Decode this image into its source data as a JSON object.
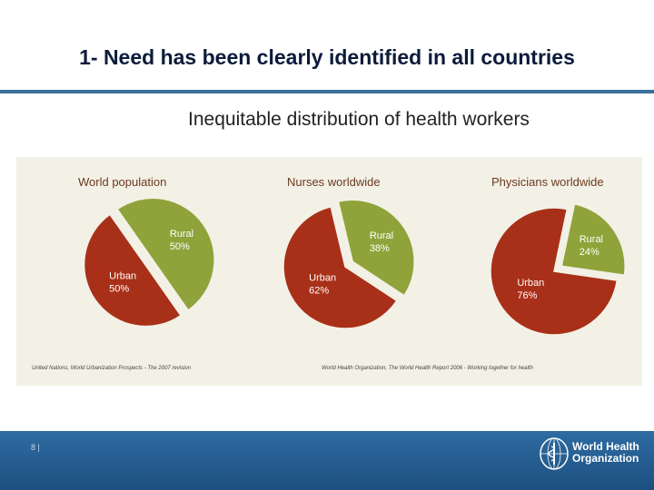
{
  "slide": {
    "title": "1- Need has been clearly identified in all countries",
    "subtitle": "Inequitable distribution of health workers",
    "page_number": "8 |",
    "logo_line1": "World Health",
    "logo_line2": "Organization"
  },
  "sources": {
    "left": "United Nations, World Urbanization Prospects - The 2007 revision",
    "right": "World Health Organization, The World Health Report 2006 - Working together for health"
  },
  "colors": {
    "rural": "#8fa33a",
    "urban": "#a93018",
    "title": "#0b1b3a",
    "footer": "#2a6599"
  },
  "chart_data": [
    {
      "type": "pie",
      "title": "World population",
      "slices": [
        {
          "label": "Rural",
          "value": 50,
          "display": "50%"
        },
        {
          "label": "Urban",
          "value": 50,
          "display": "50%"
        }
      ]
    },
    {
      "type": "pie",
      "title": "Nurses  worldwide",
      "slices": [
        {
          "label": "Rural",
          "value": 38,
          "display": "38%"
        },
        {
          "label": "Urban",
          "value": 62,
          "display": "62%"
        }
      ]
    },
    {
      "type": "pie",
      "title": "Physicians  worldwide",
      "slices": [
        {
          "label": "Rural",
          "value": 24,
          "display": "24%"
        },
        {
          "label": "Urban",
          "value": 76,
          "display": "76%"
        }
      ]
    }
  ]
}
